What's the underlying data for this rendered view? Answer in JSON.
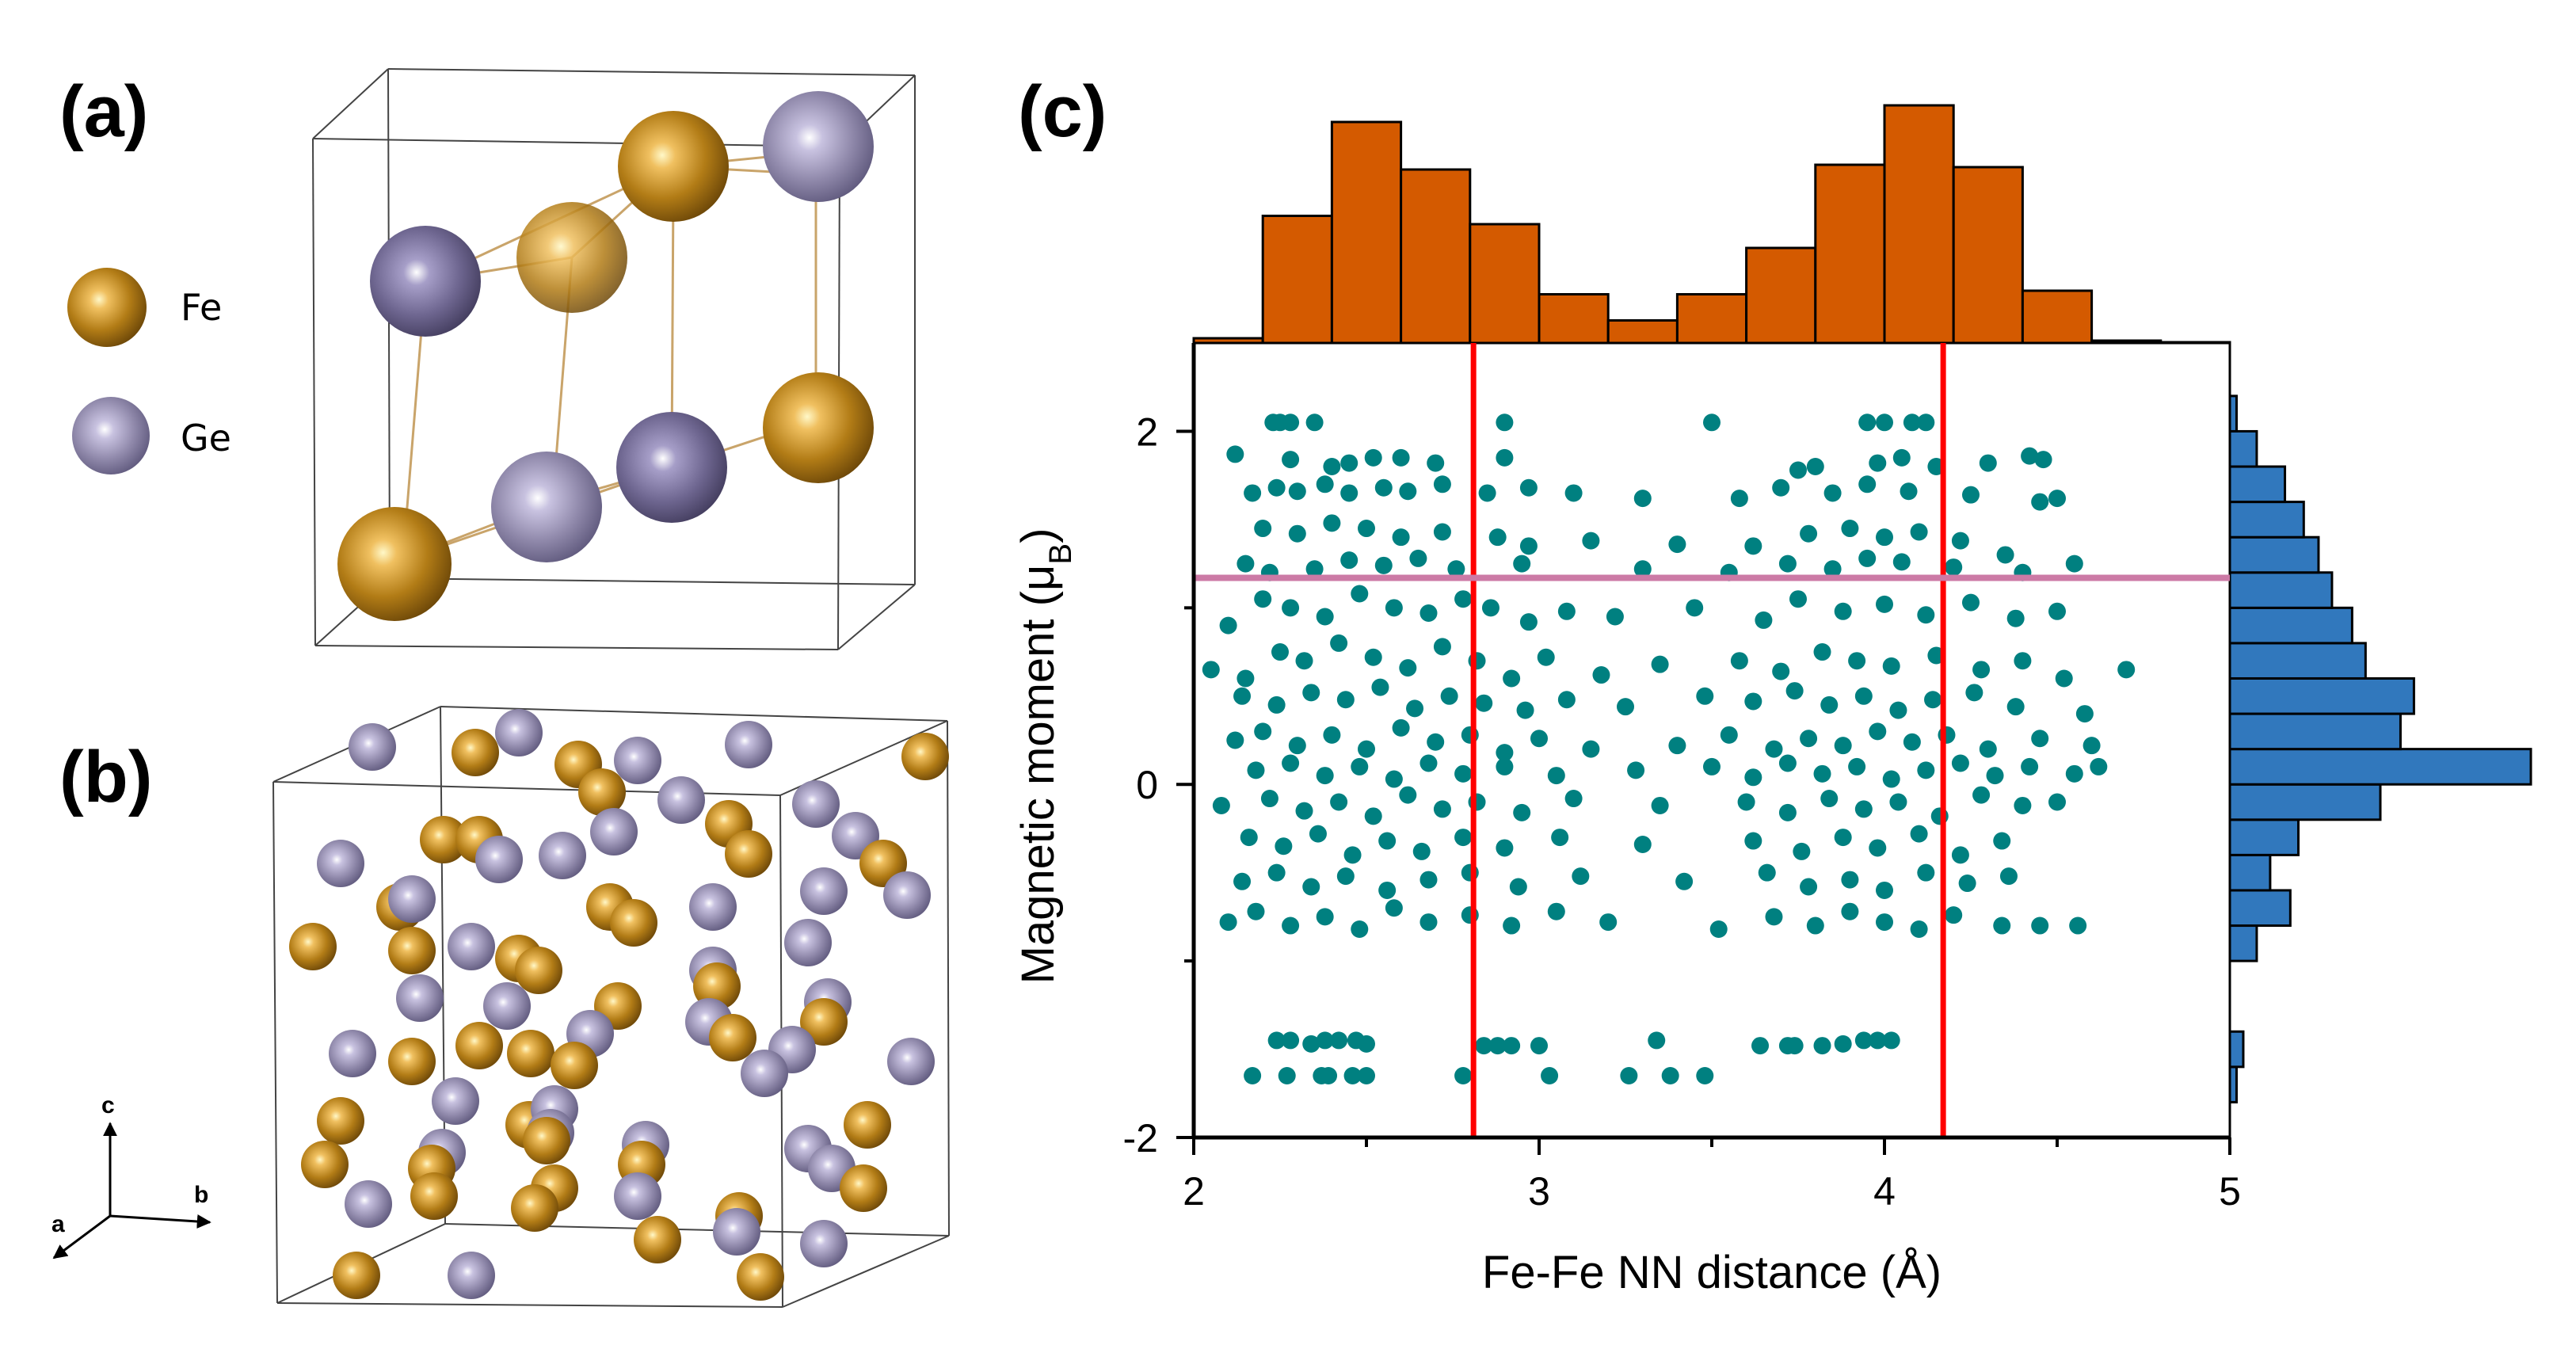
{
  "panels": {
    "a": {
      "label": "(a)",
      "legend": [
        {
          "element": "Fe",
          "color": "#b27c16"
        },
        {
          "element": "Ge",
          "color": "#8f88aa"
        }
      ],
      "atoms": [
        {
          "el": "Fe",
          "depth": "front"
        },
        {
          "el": "Ge",
          "depth": "mid"
        },
        {
          "el": "Ge",
          "depth": "back"
        },
        {
          "el": "Fe",
          "depth": "back"
        },
        {
          "el": "Ge",
          "depth": "front"
        },
        {
          "el": "Fe",
          "depth": "mid"
        },
        {
          "el": "Fe",
          "depth": "back"
        },
        {
          "el": "Ge",
          "depth": "back"
        }
      ]
    },
    "b": {
      "label": "(b)",
      "axes_triad": {
        "a": "a",
        "b": "b",
        "c": "c"
      }
    },
    "c": {
      "label": "(c)"
    }
  },
  "colors": {
    "fe": "#b27c16",
    "ge": "#8f88aa",
    "scatter": "#008080",
    "top_hist": "#d45a00",
    "right_hist": "#3178bd",
    "red_lines": "#ff0000",
    "pink_line": "#cc7aa6"
  },
  "chart_data": {
    "type": "scatter",
    "title": "",
    "xlabel": "Fe-Fe NN distance (Å)",
    "ylabel_main": "Magnetic moment (μ",
    "ylabel_sub": "B",
    "ylabel_close": ")",
    "xlim": [
      2,
      5
    ],
    "ylim": [
      -2,
      2.5
    ],
    "x_ticks": [
      2,
      3,
      4,
      5
    ],
    "x_tick_labels": [
      "2",
      "3",
      "4",
      "5"
    ],
    "x_minor_ticks": [
      2.5,
      3.5,
      4.5
    ],
    "y_ticks": [
      -2,
      0,
      2
    ],
    "y_tick_labels": [
      "-2",
      "0",
      "2"
    ],
    "y_minor_ticks": [
      -1,
      1
    ],
    "vertical_lines": [
      2.81,
      4.17
    ],
    "horizontal_lines": [
      1.17
    ],
    "top_histogram": {
      "orientation": "vertical",
      "bin_edges": [
        2.0,
        2.2,
        2.4,
        2.6,
        2.8,
        3.0,
        3.2,
        3.4,
        3.6,
        3.8,
        4.0,
        4.2,
        4.4,
        4.6,
        4.8,
        5.0
      ],
      "counts": [
        4,
        107,
        186,
        146,
        100,
        41,
        19,
        41,
        80,
        150,
        200,
        148,
        44,
        2,
        0
      ]
    },
    "right_histogram": {
      "orientation": "horizontal",
      "bin_edges": [
        -1.8,
        -1.6,
        -1.4,
        -1.2,
        -1.0,
        -0.8,
        -0.6,
        -0.4,
        -0.2,
        0.0,
        0.2,
        0.4,
        0.6,
        0.8,
        1.0,
        1.2,
        1.4,
        1.6,
        1.8,
        2.0,
        2.2
      ],
      "counts": [
        5,
        10,
        0,
        0,
        20,
        45,
        30,
        51,
        112,
        224,
        127,
        137,
        101,
        91,
        76,
        66,
        55,
        41,
        20,
        5
      ]
    },
    "scatter_points": [
      [
        2.23,
        2.05
      ],
      [
        2.25,
        2.05
      ],
      [
        2.28,
        2.05
      ],
      [
        2.35,
        2.05
      ],
      [
        2.9,
        2.05
      ],
      [
        3.5,
        2.05
      ],
      [
        3.95,
        2.05
      ],
      [
        4.0,
        2.05
      ],
      [
        4.08,
        2.05
      ],
      [
        4.12,
        2.05
      ],
      [
        2.12,
        1.87
      ],
      [
        2.28,
        1.84
      ],
      [
        2.4,
        1.8
      ],
      [
        2.45,
        1.82
      ],
      [
        2.52,
        1.85
      ],
      [
        2.6,
        1.85
      ],
      [
        2.7,
        1.82
      ],
      [
        2.9,
        1.85
      ],
      [
        3.75,
        1.78
      ],
      [
        3.8,
        1.8
      ],
      [
        3.98,
        1.82
      ],
      [
        4.05,
        1.85
      ],
      [
        4.15,
        1.8
      ],
      [
        4.3,
        1.82
      ],
      [
        4.42,
        1.86
      ],
      [
        4.46,
        1.84
      ],
      [
        2.17,
        1.65
      ],
      [
        2.24,
        1.68
      ],
      [
        2.3,
        1.66
      ],
      [
        2.38,
        1.7
      ],
      [
        2.45,
        1.65
      ],
      [
        2.55,
        1.68
      ],
      [
        2.62,
        1.66
      ],
      [
        2.72,
        1.7
      ],
      [
        2.85,
        1.65
      ],
      [
        2.97,
        1.68
      ],
      [
        3.1,
        1.65
      ],
      [
        3.3,
        1.62
      ],
      [
        3.58,
        1.62
      ],
      [
        3.7,
        1.68
      ],
      [
        3.85,
        1.65
      ],
      [
        3.95,
        1.7
      ],
      [
        4.07,
        1.66
      ],
      [
        4.25,
        1.64
      ],
      [
        4.45,
        1.6
      ],
      [
        4.5,
        1.62
      ],
      [
        2.2,
        1.45
      ],
      [
        2.3,
        1.42
      ],
      [
        2.4,
        1.48
      ],
      [
        2.5,
        1.45
      ],
      [
        2.6,
        1.4
      ],
      [
        2.72,
        1.43
      ],
      [
        2.88,
        1.4
      ],
      [
        2.97,
        1.35
      ],
      [
        3.15,
        1.38
      ],
      [
        3.4,
        1.36
      ],
      [
        3.62,
        1.35
      ],
      [
        3.78,
        1.42
      ],
      [
        3.9,
        1.45
      ],
      [
        4.0,
        1.4
      ],
      [
        4.1,
        1.43
      ],
      [
        4.22,
        1.38
      ],
      [
        4.35,
        1.3
      ],
      [
        4.55,
        1.25
      ],
      [
        2.15,
        1.25
      ],
      [
        2.22,
        1.2
      ],
      [
        2.35,
        1.22
      ],
      [
        2.45,
        1.27
      ],
      [
        2.55,
        1.24
      ],
      [
        2.65,
        1.28
      ],
      [
        2.76,
        1.22
      ],
      [
        2.95,
        1.25
      ],
      [
        3.3,
        1.22
      ],
      [
        3.55,
        1.2
      ],
      [
        3.72,
        1.25
      ],
      [
        3.85,
        1.22
      ],
      [
        3.95,
        1.28
      ],
      [
        4.05,
        1.26
      ],
      [
        4.2,
        1.23
      ],
      [
        4.4,
        1.2
      ],
      [
        2.1,
        0.9
      ],
      [
        2.2,
        1.05
      ],
      [
        2.28,
        1.0
      ],
      [
        2.38,
        0.95
      ],
      [
        2.48,
        1.08
      ],
      [
        2.58,
        1.0
      ],
      [
        2.68,
        0.97
      ],
      [
        2.78,
        1.05
      ],
      [
        2.86,
        1.0
      ],
      [
        2.97,
        0.92
      ],
      [
        3.08,
        0.98
      ],
      [
        3.22,
        0.95
      ],
      [
        3.45,
        1.0
      ],
      [
        3.65,
        0.93
      ],
      [
        3.75,
        1.05
      ],
      [
        3.88,
        0.98
      ],
      [
        4.0,
        1.02
      ],
      [
        4.12,
        0.96
      ],
      [
        4.25,
        1.03
      ],
      [
        4.38,
        0.94
      ],
      [
        4.5,
        0.98
      ],
      [
        2.05,
        0.65
      ],
      [
        2.15,
        0.6
      ],
      [
        2.25,
        0.75
      ],
      [
        2.32,
        0.7
      ],
      [
        2.42,
        0.8
      ],
      [
        2.52,
        0.72
      ],
      [
        2.62,
        0.66
      ],
      [
        2.72,
        0.78
      ],
      [
        2.82,
        0.7
      ],
      [
        2.92,
        0.6
      ],
      [
        3.02,
        0.72
      ],
      [
        3.18,
        0.62
      ],
      [
        3.35,
        0.68
      ],
      [
        3.58,
        0.7
      ],
      [
        3.7,
        0.64
      ],
      [
        3.82,
        0.75
      ],
      [
        3.92,
        0.7
      ],
      [
        4.02,
        0.67
      ],
      [
        4.15,
        0.73
      ],
      [
        4.28,
        0.65
      ],
      [
        4.4,
        0.7
      ],
      [
        4.52,
        0.6
      ],
      [
        4.7,
        0.65
      ],
      [
        2.14,
        0.5
      ],
      [
        2.24,
        0.45
      ],
      [
        2.34,
        0.52
      ],
      [
        2.44,
        0.48
      ],
      [
        2.54,
        0.55
      ],
      [
        2.64,
        0.43
      ],
      [
        2.74,
        0.5
      ],
      [
        2.84,
        0.46
      ],
      [
        2.96,
        0.42
      ],
      [
        3.08,
        0.48
      ],
      [
        3.25,
        0.44
      ],
      [
        3.48,
        0.5
      ],
      [
        3.62,
        0.47
      ],
      [
        3.74,
        0.53
      ],
      [
        3.84,
        0.45
      ],
      [
        3.94,
        0.5
      ],
      [
        4.04,
        0.42
      ],
      [
        4.14,
        0.48
      ],
      [
        4.26,
        0.52
      ],
      [
        4.38,
        0.44
      ],
      [
        4.58,
        0.4
      ],
      [
        2.12,
        0.25
      ],
      [
        2.2,
        0.3
      ],
      [
        2.3,
        0.22
      ],
      [
        2.4,
        0.28
      ],
      [
        2.5,
        0.2
      ],
      [
        2.6,
        0.32
      ],
      [
        2.7,
        0.24
      ],
      [
        2.8,
        0.28
      ],
      [
        2.9,
        0.18
      ],
      [
        3.0,
        0.26
      ],
      [
        3.15,
        0.2
      ],
      [
        3.4,
        0.22
      ],
      [
        3.55,
        0.28
      ],
      [
        3.68,
        0.2
      ],
      [
        3.78,
        0.26
      ],
      [
        3.88,
        0.22
      ],
      [
        3.98,
        0.3
      ],
      [
        4.08,
        0.24
      ],
      [
        4.18,
        0.28
      ],
      [
        4.3,
        0.2
      ],
      [
        4.45,
        0.26
      ],
      [
        4.6,
        0.22
      ],
      [
        2.18,
        0.08
      ],
      [
        2.28,
        0.12
      ],
      [
        2.38,
        0.05
      ],
      [
        2.48,
        0.1
      ],
      [
        2.58,
        0.03
      ],
      [
        2.68,
        0.12
      ],
      [
        2.78,
        0.06
      ],
      [
        2.9,
        0.1
      ],
      [
        3.05,
        0.05
      ],
      [
        3.28,
        0.08
      ],
      [
        3.5,
        0.1
      ],
      [
        3.62,
        0.04
      ],
      [
        3.72,
        0.12
      ],
      [
        3.82,
        0.06
      ],
      [
        3.92,
        0.1
      ],
      [
        4.02,
        0.03
      ],
      [
        4.12,
        0.08
      ],
      [
        4.22,
        0.12
      ],
      [
        4.32,
        0.05
      ],
      [
        4.42,
        0.1
      ],
      [
        4.55,
        0.06
      ],
      [
        4.62,
        0.1
      ],
      [
        2.08,
        -0.12
      ],
      [
        2.22,
        -0.08
      ],
      [
        2.32,
        -0.15
      ],
      [
        2.42,
        -0.1
      ],
      [
        2.52,
        -0.18
      ],
      [
        2.62,
        -0.06
      ],
      [
        2.72,
        -0.14
      ],
      [
        2.82,
        -0.1
      ],
      [
        2.95,
        -0.16
      ],
      [
        3.1,
        -0.08
      ],
      [
        3.35,
        -0.12
      ],
      [
        3.6,
        -0.1
      ],
      [
        3.72,
        -0.16
      ],
      [
        3.84,
        -0.08
      ],
      [
        3.94,
        -0.14
      ],
      [
        4.04,
        -0.1
      ],
      [
        4.16,
        -0.18
      ],
      [
        4.28,
        -0.06
      ],
      [
        4.4,
        -0.12
      ],
      [
        4.5,
        -0.1
      ],
      [
        2.16,
        -0.3
      ],
      [
        2.26,
        -0.35
      ],
      [
        2.36,
        -0.28
      ],
      [
        2.46,
        -0.4
      ],
      [
        2.56,
        -0.32
      ],
      [
        2.66,
        -0.38
      ],
      [
        2.78,
        -0.3
      ],
      [
        2.9,
        -0.36
      ],
      [
        3.06,
        -0.3
      ],
      [
        3.3,
        -0.34
      ],
      [
        3.62,
        -0.32
      ],
      [
        3.76,
        -0.38
      ],
      [
        3.88,
        -0.3
      ],
      [
        3.98,
        -0.36
      ],
      [
        4.1,
        -0.28
      ],
      [
        4.22,
        -0.4
      ],
      [
        4.34,
        -0.32
      ],
      [
        2.14,
        -0.55
      ],
      [
        2.24,
        -0.5
      ],
      [
        2.34,
        -0.58
      ],
      [
        2.44,
        -0.52
      ],
      [
        2.56,
        -0.6
      ],
      [
        2.68,
        -0.54
      ],
      [
        2.8,
        -0.5
      ],
      [
        2.94,
        -0.58
      ],
      [
        3.12,
        -0.52
      ],
      [
        3.42,
        -0.55
      ],
      [
        3.66,
        -0.5
      ],
      [
        3.78,
        -0.58
      ],
      [
        3.9,
        -0.54
      ],
      [
        4.0,
        -0.6
      ],
      [
        4.12,
        -0.5
      ],
      [
        4.24,
        -0.56
      ],
      [
        4.36,
        -0.52
      ],
      [
        2.1,
        -0.78
      ],
      [
        2.18,
        -0.72
      ],
      [
        2.28,
        -0.8
      ],
      [
        2.38,
        -0.75
      ],
      [
        2.48,
        -0.82
      ],
      [
        2.58,
        -0.7
      ],
      [
        2.68,
        -0.78
      ],
      [
        2.8,
        -0.74
      ],
      [
        2.92,
        -0.8
      ],
      [
        3.05,
        -0.72
      ],
      [
        3.2,
        -0.78
      ],
      [
        3.52,
        -0.82
      ],
      [
        3.68,
        -0.75
      ],
      [
        3.8,
        -0.8
      ],
      [
        3.9,
        -0.72
      ],
      [
        4.0,
        -0.78
      ],
      [
        4.1,
        -0.82
      ],
      [
        4.2,
        -0.74
      ],
      [
        4.34,
        -0.8
      ],
      [
        4.45,
        -0.8
      ],
      [
        4.56,
        -0.8
      ],
      [
        2.24,
        -1.45
      ],
      [
        2.28,
        -1.45
      ],
      [
        2.34,
        -1.47
      ],
      [
        2.38,
        -1.45
      ],
      [
        2.42,
        -1.45
      ],
      [
        2.47,
        -1.45
      ],
      [
        2.5,
        -1.47
      ],
      [
        2.84,
        -1.48
      ],
      [
        2.88,
        -1.48
      ],
      [
        2.92,
        -1.48
      ],
      [
        3.0,
        -1.48
      ],
      [
        3.34,
        -1.45
      ],
      [
        3.64,
        -1.48
      ],
      [
        3.72,
        -1.48
      ],
      [
        3.74,
        -1.48
      ],
      [
        3.82,
        -1.48
      ],
      [
        3.88,
        -1.47
      ],
      [
        3.94,
        -1.45
      ],
      [
        3.98,
        -1.45
      ],
      [
        4.02,
        -1.45
      ],
      [
        2.17,
        -1.65
      ],
      [
        2.27,
        -1.65
      ],
      [
        2.37,
        -1.65
      ],
      [
        2.39,
        -1.65
      ],
      [
        2.46,
        -1.65
      ],
      [
        2.5,
        -1.65
      ],
      [
        2.78,
        -1.65
      ],
      [
        3.03,
        -1.65
      ],
      [
        3.26,
        -1.65
      ],
      [
        3.38,
        -1.65
      ],
      [
        3.48,
        -1.65
      ]
    ]
  }
}
